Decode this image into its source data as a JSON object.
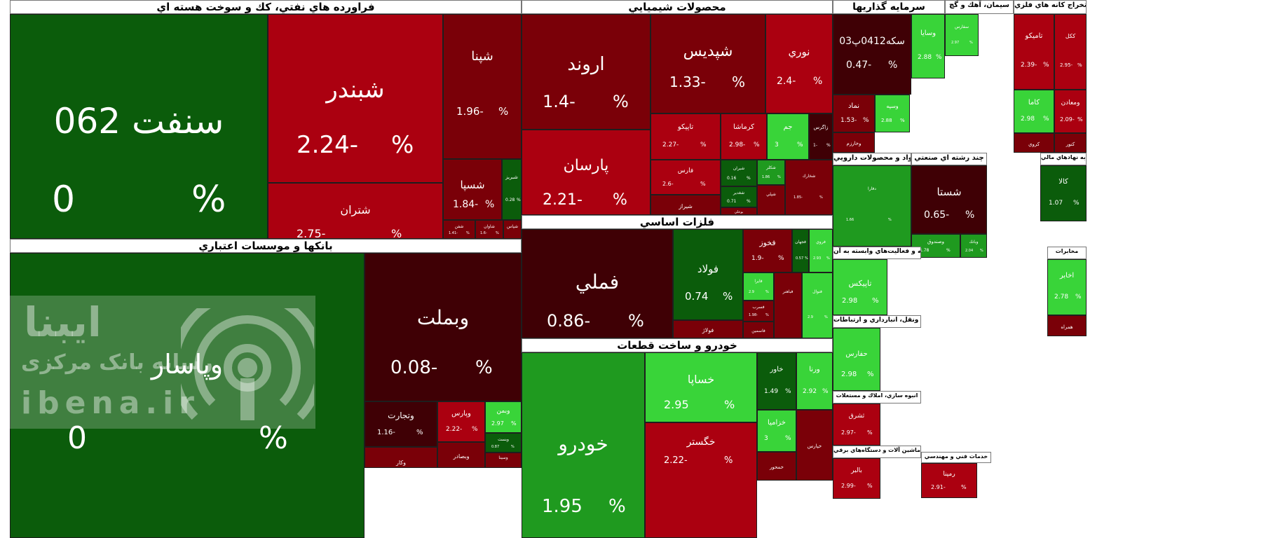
{
  "watermark": {
    "line1": "ايبنا",
    "line2": "رسانه بانک مرکزی",
    "line3": "ibena.ir"
  },
  "chart_data": {
    "type": "treemap",
    "unit": "%",
    "colors": {
      "strong_green": "#0b5c0b",
      "green": "#1f9a1f",
      "light_green": "#39d439",
      "dark_red": "#3f0005",
      "red": "#7a0008",
      "bright_red": "#ab0010"
    },
    "sectors": [
      {
        "name": "فراورده هاي نفتي، كك و سوخت هسته اي",
        "stocks": [
          {
            "name": "سنفت 062",
            "change": 0
          },
          {
            "name": "شبندر",
            "change": -2.24
          },
          {
            "name": "شپنا",
            "change": -1.96
          },
          {
            "name": "شتران",
            "change": -2.75
          },
          {
            "name": "شسپا",
            "change": -1.84
          },
          {
            "name": "شبريز",
            "change": 0.28
          },
          {
            "name": "شفن",
            "change": -1.41
          },
          {
            "name": "شاوان",
            "change": -1.6
          },
          {
            "name": "شپاس",
            "change": null
          }
        ]
      },
      {
        "name": "بانكها و موسسات اعتباري",
        "stocks": [
          {
            "name": "وپاسار",
            "change": 0
          },
          {
            "name": "وبملت",
            "change": -0.08
          },
          {
            "name": "وتجارت",
            "change": -1.16
          },
          {
            "name": "وپارس",
            "change": -2.22
          },
          {
            "name": "وبصادر",
            "change": null
          },
          {
            "name": "وبمن",
            "change": 2.97
          },
          {
            "name": "وبست",
            "change": 0.87
          },
          {
            "name": "وكار",
            "change": null
          },
          {
            "name": "وسينا",
            "change": null
          }
        ]
      },
      {
        "name": "محصولات شيميايي",
        "stocks": [
          {
            "name": "اروند",
            "change": -1.4
          },
          {
            "name": "شپديس",
            "change": -1.33
          },
          {
            "name": "نوري",
            "change": -2.4
          },
          {
            "name": "پارسان",
            "change": -2.21
          },
          {
            "name": "تاپيكو",
            "change": -2.27
          },
          {
            "name": "كرماشا",
            "change": -2.98
          },
          {
            "name": "جم",
            "change": 3
          },
          {
            "name": "زاگرس",
            "change": -1
          },
          {
            "name": "فارس",
            "change": -2.6
          },
          {
            "name": "شيراز",
            "change": null
          },
          {
            "name": "شيران",
            "change": 0.16
          },
          {
            "name": "شغدير",
            "change": 0.71
          },
          {
            "name": "بوعلي",
            "change": null
          },
          {
            "name": "شكلر",
            "change": 1.86
          },
          {
            "name": "شپلي",
            "change": null
          },
          {
            "name": "شخارك",
            "change": -1.85
          }
        ]
      },
      {
        "name": "فلزات اساسي",
        "stocks": [
          {
            "name": "فملي",
            "change": -0.86
          },
          {
            "name": "فولاد",
            "change": 0.74
          },
          {
            "name": "فخوز",
            "change": -1.9
          },
          {
            "name": "فجهان",
            "change": 0.57
          },
          {
            "name": "فروي",
            "change": 2.93
          },
          {
            "name": "فايرا",
            "change": 2.9
          },
          {
            "name": "فسرب",
            "change": -1.98
          },
          {
            "name": "فاسمين",
            "change": null
          },
          {
            "name": "فولاژ",
            "change": null
          },
          {
            "name": "فباهنر",
            "change": null
          },
          {
            "name": "فنوال",
            "change": 2.9
          }
        ]
      },
      {
        "name": "خودرو و ساخت قطعات",
        "stocks": [
          {
            "name": "خودرو",
            "change": 1.95
          },
          {
            "name": "خساپا",
            "change": 2.95
          },
          {
            "name": "خاور",
            "change": 1.49
          },
          {
            "name": "ورنا",
            "change": 2.92
          },
          {
            "name": "خگستر",
            "change": -2.22
          },
          {
            "name": "خزاميا",
            "change": 3
          },
          {
            "name": "خمحور",
            "change": null
          },
          {
            "name": "خپارس",
            "change": null
          }
        ]
      },
      {
        "name": "سرمايه گذاريها",
        "stocks": [
          {
            "name": "سكه0412پ03",
            "change": -0.47
          },
          {
            "name": "وسايا",
            "change": 2.88
          },
          {
            "name": "نماد",
            "change": -1.53
          },
          {
            "name": "وسپه",
            "change": 2.88
          },
          {
            "name": "وخارزم",
            "change": null
          }
        ]
      },
      {
        "name": "سيمان، آهك و گچ",
        "stocks": [
          {
            "name": "سفارس",
            "change": 2.97
          }
        ]
      },
      {
        "name": "استخراج كانه هاي فلزي",
        "stocks": [
          {
            "name": "تاميكو",
            "change": -2.39
          },
          {
            "name": "ككل",
            "change": -2.95
          },
          {
            "name": "كاما",
            "change": 2.98
          },
          {
            "name": "ومعادن",
            "change": -2.09
          },
          {
            "name": "كروي",
            "change": null
          },
          {
            "name": "كنور",
            "change": null
          }
        ]
      },
      {
        "name": "مواد و محصولات دارويي",
        "stocks": [
          {
            "name": "دفارا",
            "change": 1.66
          }
        ]
      },
      {
        "name": "چند رشته اي صنعتي",
        "stocks": [
          {
            "name": "شستا",
            "change": -0.65
          },
          {
            "name": "وصندوق",
            "change": 1.78
          },
          {
            "name": "وبانك",
            "change": 2.04
          }
        ]
      },
      {
        "name": "فعاليتهاي كمكي به نهادهاي مالي",
        "stocks": [
          {
            "name": "كالا",
            "change": 1.07
          }
        ]
      },
      {
        "name": "رايانه و فعاليت‌هاي وابسته به آن",
        "stocks": [
          {
            "name": "تاپيكس",
            "change": 2.98
          }
        ]
      },
      {
        "name": "حمل ونقل، انبارداري و ارتباطات",
        "stocks": [
          {
            "name": "حفارس",
            "change": 2.98
          }
        ]
      },
      {
        "name": "انبوه سازي، املاك و مستغلات",
        "stocks": [
          {
            "name": "ثشرق",
            "change": -2.97
          }
        ]
      },
      {
        "name": "ماشين آلات و دستگاه‌هاي برقي",
        "stocks": [
          {
            "name": "بالبر",
            "change": -2.99
          }
        ]
      },
      {
        "name": "مخابرات",
        "stocks": [
          {
            "name": "اخابر",
            "change": 2.78
          },
          {
            "name": "همراه",
            "change": null
          }
        ]
      },
      {
        "name": "خدمات فني و مهندسي",
        "stocks": [
          {
            "name": "رمپنا",
            "change": -2.91
          }
        ]
      }
    ]
  }
}
